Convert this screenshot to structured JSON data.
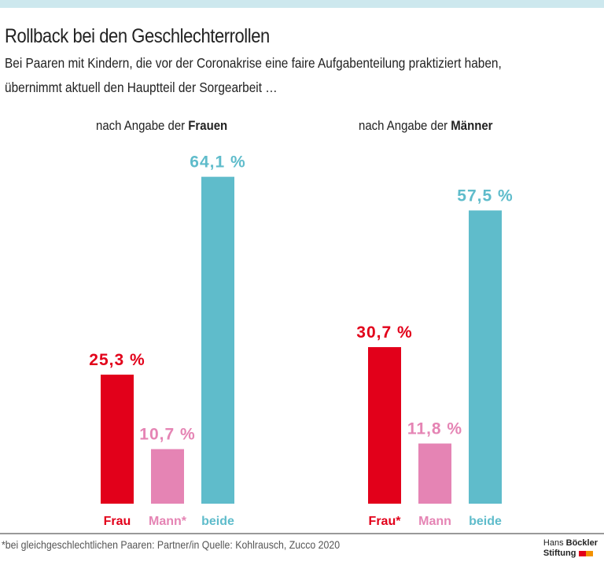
{
  "title": "Rollback bei den Geschlechterrollen",
  "subtitle": [
    "Bei Paaren mit Kindern, die vor der Coronakrise eine faire Aufgabenteilung praktiziert haben,",
    "übernimmt aktuell den Hauptteil der Sorgearbeit …"
  ],
  "colors": {
    "frau": "#e2001a",
    "mann": "#e584b4",
    "beide": "#5fbccb",
    "topbar": "#cde8ee"
  },
  "chart_data": [
    {
      "type": "bar",
      "title_prefix": "nach Angabe der ",
      "title_bold": "Frauen",
      "categories": [
        "Frau",
        "Mann*",
        "beide"
      ],
      "values": [
        25.3,
        10.7,
        64.1
      ],
      "labels": [
        "25,3 %",
        "10,7 %",
        "64,1 %"
      ],
      "ylim": [
        0,
        70
      ]
    },
    {
      "type": "bar",
      "title_prefix": "nach Angabe der ",
      "title_bold": "Männer",
      "categories": [
        "Frau*",
        "Mann",
        "beide"
      ],
      "values": [
        30.7,
        11.8,
        57.5
      ],
      "labels": [
        "30,7 %",
        "11,8 %",
        "57,5 %"
      ],
      "ylim": [
        0,
        70
      ]
    }
  ],
  "footer": "*bei gleichgeschlechtlichen Paaren: Partner/in  Quelle: Kohlrausch, Zucco 2020",
  "logo": {
    "line1_a": "Hans ",
    "line1_b": "Böckler",
    "line2": "Stiftung"
  }
}
